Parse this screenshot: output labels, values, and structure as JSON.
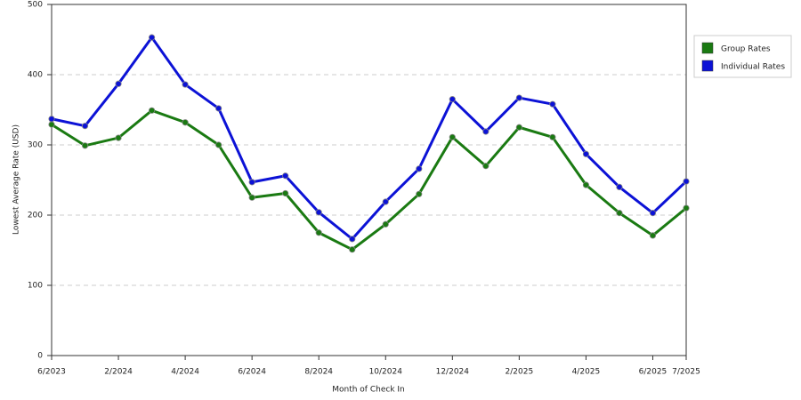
{
  "chart_data": {
    "type": "line",
    "x_label": "Month of Check In",
    "y_label": "Lowest Average Rate (USD)",
    "categories": [
      "6/2023",
      null,
      "2/2024",
      null,
      "4/2024",
      null,
      "6/2024",
      null,
      "8/2024",
      null,
      "10/2024",
      null,
      "12/2024",
      null,
      "2/2025",
      null,
      "4/2025",
      null,
      "6/2025",
      "7/2025"
    ],
    "series": [
      {
        "name": "Group Rates",
        "color": "#1a7a12",
        "values": [
          329,
          299,
          310,
          349,
          332,
          300,
          225,
          231,
          175,
          151,
          187,
          230,
          311,
          270,
          325,
          311,
          243,
          203,
          171,
          210
        ]
      },
      {
        "name": "Individual Rates",
        "color": "#0c12d6",
        "values": [
          337,
          327,
          387,
          453,
          386,
          352,
          247,
          256,
          204,
          166,
          219,
          266,
          365,
          319,
          367,
          358,
          287,
          240,
          203,
          248
        ]
      }
    ],
    "ylim": [
      0,
      500
    ],
    "yticks": [
      0,
      100,
      200,
      300,
      400,
      500
    ],
    "grid": true,
    "legend": "right"
  }
}
